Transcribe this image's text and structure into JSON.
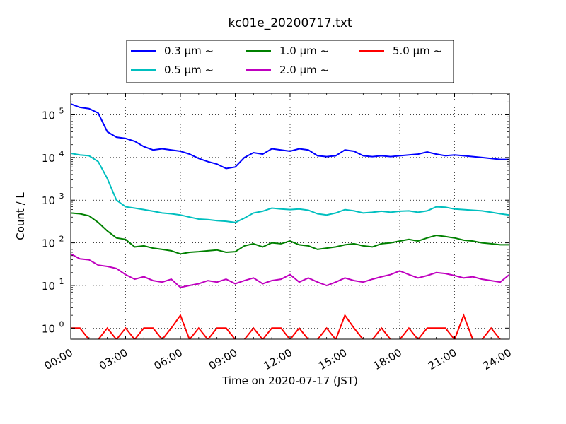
{
  "chart_data": {
    "type": "line",
    "title": "kc01e_20200717.txt",
    "xlabel": "Time on 2020-07-17 (JST)",
    "ylabel": "Count / L",
    "yscale": "log",
    "xlim": [
      "00:00",
      "24:00"
    ],
    "ylim": [
      0.55,
      320000
    ],
    "grid": true,
    "legend_position": "top",
    "x_ticks": [
      "00:00",
      "03:00",
      "06:00",
      "09:00",
      "12:00",
      "15:00",
      "18:00",
      "21:00",
      "24:00"
    ],
    "y_ticks": [
      {
        "value": 1,
        "label": "10",
        "exp": "0"
      },
      {
        "value": 10,
        "label": "10",
        "exp": "1"
      },
      {
        "value": 100,
        "label": "10",
        "exp": "2"
      },
      {
        "value": 1000,
        "label": "10",
        "exp": "3"
      },
      {
        "value": 10000,
        "label": "10",
        "exp": "4"
      },
      {
        "value": 100000,
        "label": "10",
        "exp": "5"
      }
    ],
    "series": [
      {
        "name": "0.3 μm  ~",
        "color": "#0000ff",
        "x_hours": [
          0,
          0.5,
          1,
          1.5,
          2,
          2.5,
          3,
          3.5,
          4,
          4.5,
          5,
          5.5,
          6,
          6.5,
          7,
          7.5,
          8,
          8.5,
          9,
          9.5,
          10,
          10.5,
          11,
          11.5,
          12,
          12.5,
          13,
          13.5,
          14,
          14.5,
          15,
          15.5,
          16,
          16.5,
          17,
          17.5,
          18,
          18.5,
          19,
          19.5,
          20,
          20.5,
          21,
          21.5,
          22,
          22.5,
          23,
          23.5,
          24
        ],
        "values": [
          180000,
          150000,
          140000,
          110000,
          40000,
          30000,
          28000,
          24000,
          18000,
          15000,
          16000,
          15000,
          14000,
          12000,
          9500,
          8000,
          7000,
          5500,
          6000,
          10000,
          13000,
          12000,
          16000,
          15000,
          14000,
          16000,
          15000,
          11000,
          10500,
          11000,
          15000,
          14000,
          11000,
          10500,
          11000,
          10500,
          11000,
          11500,
          12000,
          13500,
          12000,
          11000,
          11500,
          11000,
          10500,
          10000,
          9500,
          9000,
          9000
        ]
      },
      {
        "name": "0.5 μm  ~",
        "color": "#00bfbf",
        "x_hours": [
          0,
          0.5,
          1,
          1.5,
          2,
          2.5,
          3,
          3.5,
          4,
          4.5,
          5,
          5.5,
          6,
          6.5,
          7,
          7.5,
          8,
          8.5,
          9,
          9.5,
          10,
          10.5,
          11,
          11.5,
          12,
          12.5,
          13,
          13.5,
          14,
          14.5,
          15,
          15.5,
          16,
          16.5,
          17,
          17.5,
          18,
          18.5,
          19,
          19.5,
          20,
          20.5,
          21,
          21.5,
          22,
          22.5,
          23,
          23.5,
          24
        ],
        "values": [
          12500,
          11500,
          11000,
          8000,
          3200,
          1000,
          700,
          650,
          600,
          550,
          500,
          480,
          450,
          400,
          360,
          350,
          330,
          320,
          300,
          380,
          500,
          550,
          650,
          620,
          600,
          620,
          580,
          480,
          450,
          500,
          600,
          560,
          500,
          520,
          550,
          520,
          550,
          560,
          520,
          560,
          700,
          680,
          620,
          600,
          580,
          560,
          520,
          480,
          450
        ]
      },
      {
        "name": "1.0 μm  ~",
        "color": "#008000",
        "x_hours": [
          0,
          0.5,
          1,
          1.5,
          2,
          2.5,
          3,
          3.5,
          4,
          4.5,
          5,
          5.5,
          6,
          6.5,
          7,
          7.5,
          8,
          8.5,
          9,
          9.5,
          10,
          10.5,
          11,
          11.5,
          12,
          12.5,
          13,
          13.5,
          14,
          14.5,
          15,
          15.5,
          16,
          16.5,
          17,
          17.5,
          18,
          18.5,
          19,
          19.5,
          20,
          20.5,
          21,
          21.5,
          22,
          22.5,
          23,
          23.5,
          24
        ],
        "values": [
          500,
          480,
          430,
          300,
          190,
          130,
          120,
          80,
          85,
          75,
          70,
          65,
          55,
          60,
          62,
          65,
          68,
          60,
          62,
          85,
          95,
          80,
          100,
          95,
          110,
          90,
          85,
          70,
          75,
          80,
          90,
          95,
          85,
          80,
          95,
          100,
          110,
          120,
          110,
          130,
          150,
          140,
          130,
          115,
          110,
          100,
          95,
          90,
          90
        ]
      },
      {
        "name": "2.0 μm  ~",
        "color": "#bf00bf",
        "x_hours": [
          0,
          0.5,
          1,
          1.5,
          2,
          2.5,
          3,
          3.5,
          4,
          4.5,
          5,
          5.5,
          6,
          6.5,
          7,
          7.5,
          8,
          8.5,
          9,
          9.5,
          10,
          10.5,
          11,
          11.5,
          12,
          12.5,
          13,
          13.5,
          14,
          14.5,
          15,
          15.5,
          16,
          16.5,
          17,
          17.5,
          18,
          18.5,
          19,
          19.5,
          20,
          20.5,
          21,
          21.5,
          22,
          22.5,
          23,
          23.5,
          24
        ],
        "values": [
          55,
          42,
          40,
          30,
          28,
          25,
          18,
          14,
          16,
          13,
          12,
          14,
          9,
          10,
          11,
          13,
          12,
          14,
          11,
          13,
          15,
          11,
          13,
          14,
          18,
          12,
          15,
          12,
          10,
          12,
          15,
          13,
          12,
          14,
          16,
          18,
          22,
          18,
          15,
          17,
          20,
          19,
          17,
          15,
          16,
          14,
          13,
          12,
          18
        ]
      },
      {
        "name": "5.0 μm  ~",
        "color": "#ff0000",
        "x_hours": [
          0,
          0.5,
          1,
          1.5,
          2,
          2.5,
          3,
          3.5,
          4,
          4.5,
          5,
          5.5,
          6,
          6.5,
          7,
          7.5,
          8,
          8.5,
          9,
          9.5,
          10,
          10.5,
          11,
          11.5,
          12,
          12.5,
          13,
          13.5,
          14,
          14.5,
          15,
          15.5,
          16,
          16.5,
          17,
          17.5,
          18,
          18.5,
          19,
          19.5,
          20,
          20.5,
          21,
          21.5,
          22,
          22.5,
          23,
          23.5,
          24
        ],
        "values": [
          1,
          1,
          0.5,
          0.5,
          1,
          0.5,
          1,
          0.5,
          1,
          1,
          0.5,
          1,
          2,
          0.5,
          1,
          0.5,
          1,
          1,
          0.5,
          0.5,
          1,
          0.5,
          1,
          1,
          0.5,
          1,
          0.5,
          0.5,
          1,
          0.5,
          2,
          1,
          0.5,
          0.5,
          1,
          0.5,
          0.5,
          1,
          0.5,
          1,
          1,
          1,
          0.5,
          2,
          0.5,
          0.5,
          1,
          0.5,
          0.5
        ]
      }
    ]
  }
}
